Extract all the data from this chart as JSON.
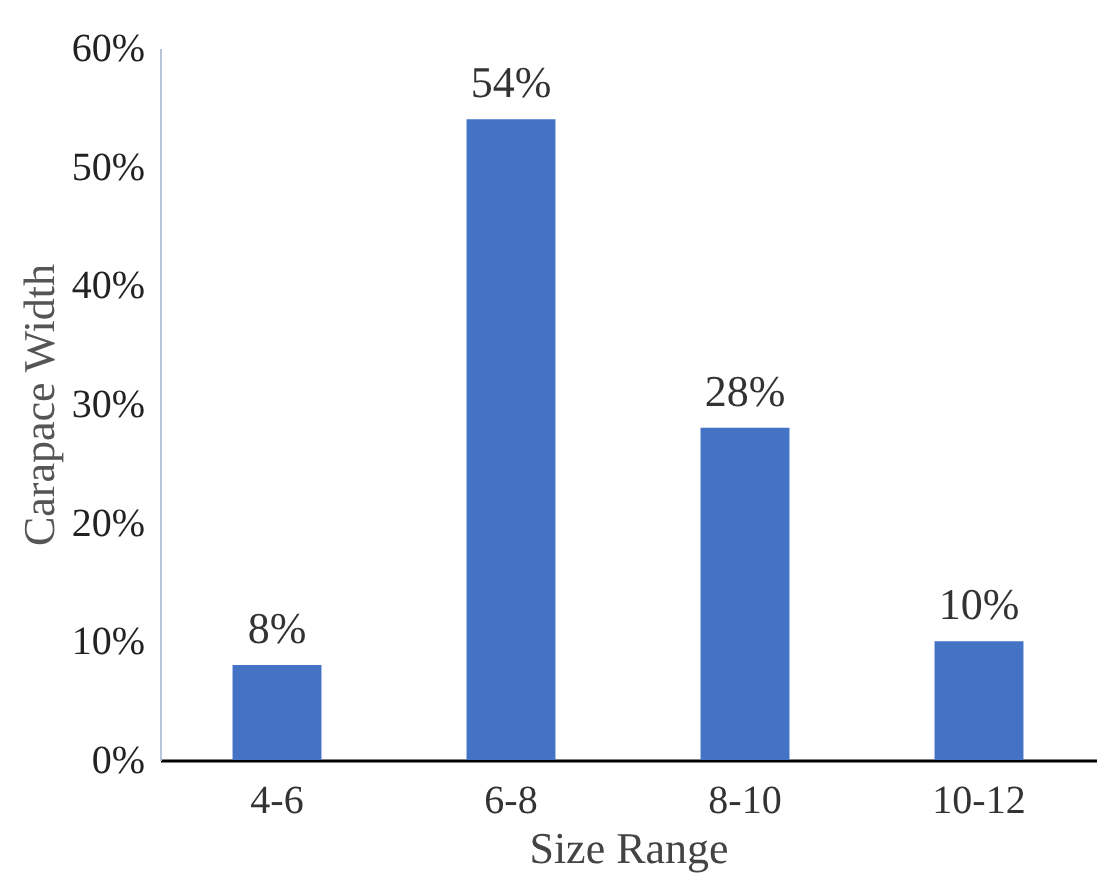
{
  "chart_data": {
    "type": "bar",
    "xlabel": "Size Range",
    "ylabel": "Carapace Width",
    "categories": [
      "4-6",
      "6-8",
      "8-10",
      "10-12"
    ],
    "values": [
      8,
      54,
      28,
      10
    ],
    "color": "#4472c4",
    "value_labels": [
      "8%",
      "54%",
      "28%",
      "10%"
    ],
    "ylim": [
      0,
      60
    ],
    "yticks": [
      {
        "value": 0,
        "label": "0%"
      },
      {
        "value": 10,
        "label": "10%"
      },
      {
        "value": 20,
        "label": "20%"
      },
      {
        "value": 30,
        "label": "30%"
      },
      {
        "value": 40,
        "label": "40%"
      },
      {
        "value": 50,
        "label": "50%"
      },
      {
        "value": 60,
        "label": "60%"
      }
    ],
    "grid": false
  }
}
